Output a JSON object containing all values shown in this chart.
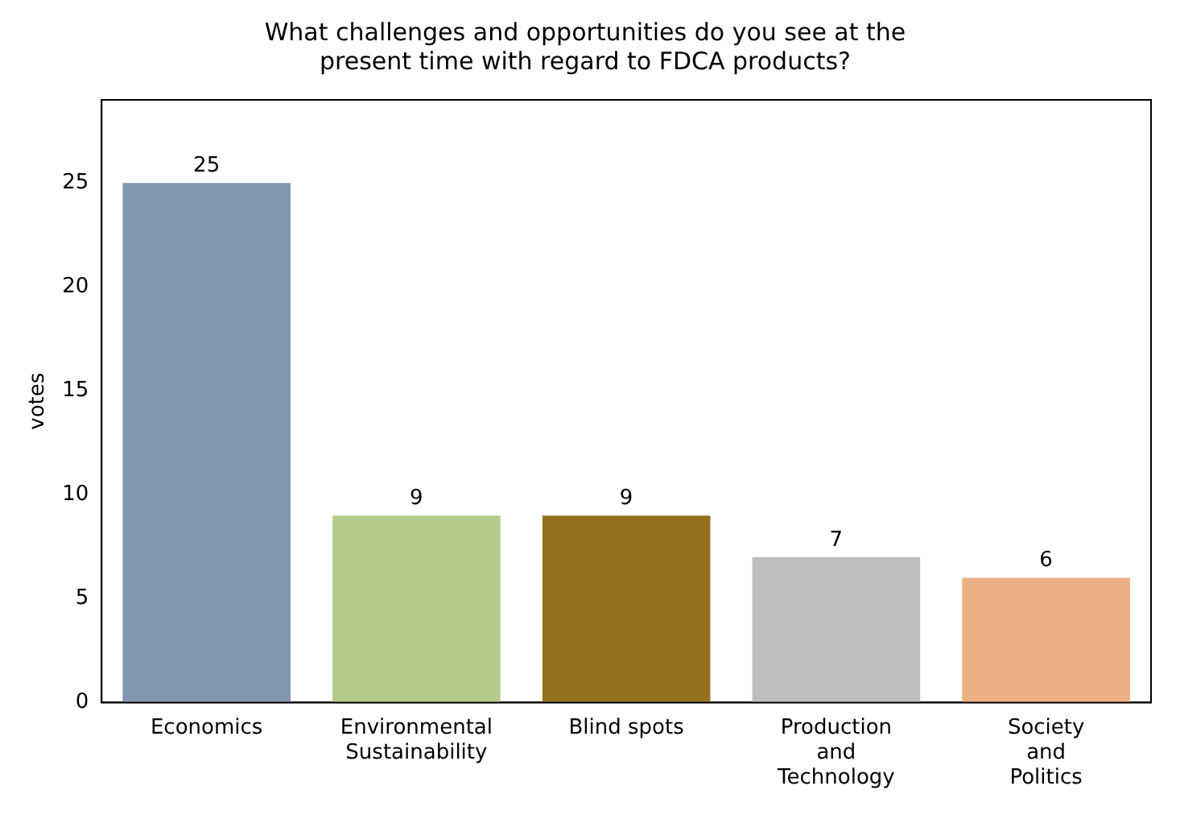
{
  "chart_data": {
    "type": "bar",
    "title": "What challenges and opportunities do you see at the present time with regard to FDCA products?",
    "ylabel": "votes",
    "categories": [
      "Economics",
      "Environmental\nSustainability",
      "Blind spots",
      "Production\nand\nTechnology",
      "Society\nand\nPolitics"
    ],
    "values": [
      25,
      9,
      9,
      7,
      6
    ],
    "colors": [
      "#8497b0",
      "#b2cb8c",
      "#94711e",
      "#bebebe",
      "#ebaf83"
    ],
    "ylim": [
      0,
      29
    ],
    "yticks": [
      0,
      5,
      10,
      15,
      20,
      25
    ],
    "grid": false,
    "legend": false,
    "data_labels": true
  }
}
